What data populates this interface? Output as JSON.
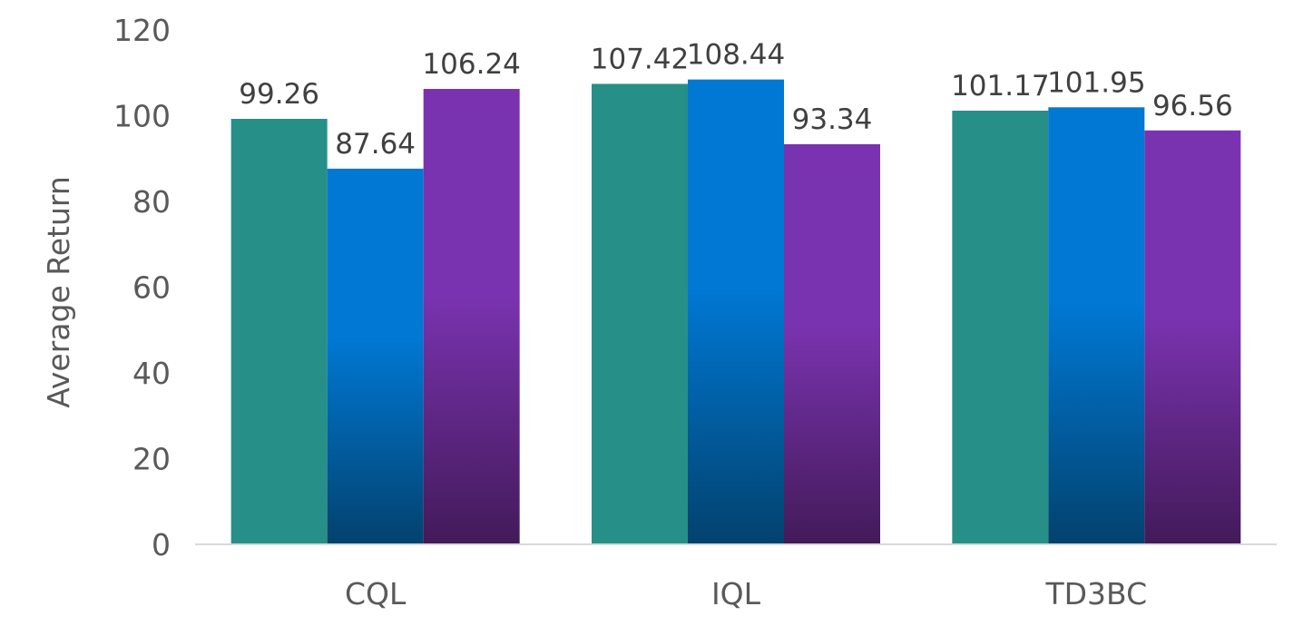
{
  "chart_data": {
    "type": "bar",
    "title": "",
    "xlabel": "",
    "ylabel": "Average Return",
    "categories": [
      "CQL",
      "IQL",
      "TD3BC"
    ],
    "series": [
      {
        "values": [
          99.26,
          107.42,
          101.17
        ]
      },
      {
        "values": [
          87.64,
          108.44,
          101.95
        ]
      },
      {
        "values": [
          106.24,
          93.34,
          96.56
        ]
      }
    ],
    "ylim": [
      0,
      120
    ],
    "yticks": [
      0,
      20,
      40,
      60,
      80,
      100,
      120
    ],
    "ytick_labels": [
      "0",
      "20",
      "40",
      "60",
      "80",
      "100",
      "120"
    ],
    "data_labels": [
      [
        "99.26",
        "107.42",
        "101.17"
      ],
      [
        "87.64",
        "108.44",
        "101.95"
      ],
      [
        "106.24",
        "93.34",
        "96.56"
      ]
    ],
    "grid": false,
    "legend": "none",
    "colors": {
      "series_top": [
        "#269088",
        "#0078d4",
        "#7a33b0"
      ],
      "series_bottom": [
        "#269088",
        "#03426e",
        "#431a59"
      ],
      "baseline": "#d9d9d9",
      "text": "#595959"
    }
  }
}
